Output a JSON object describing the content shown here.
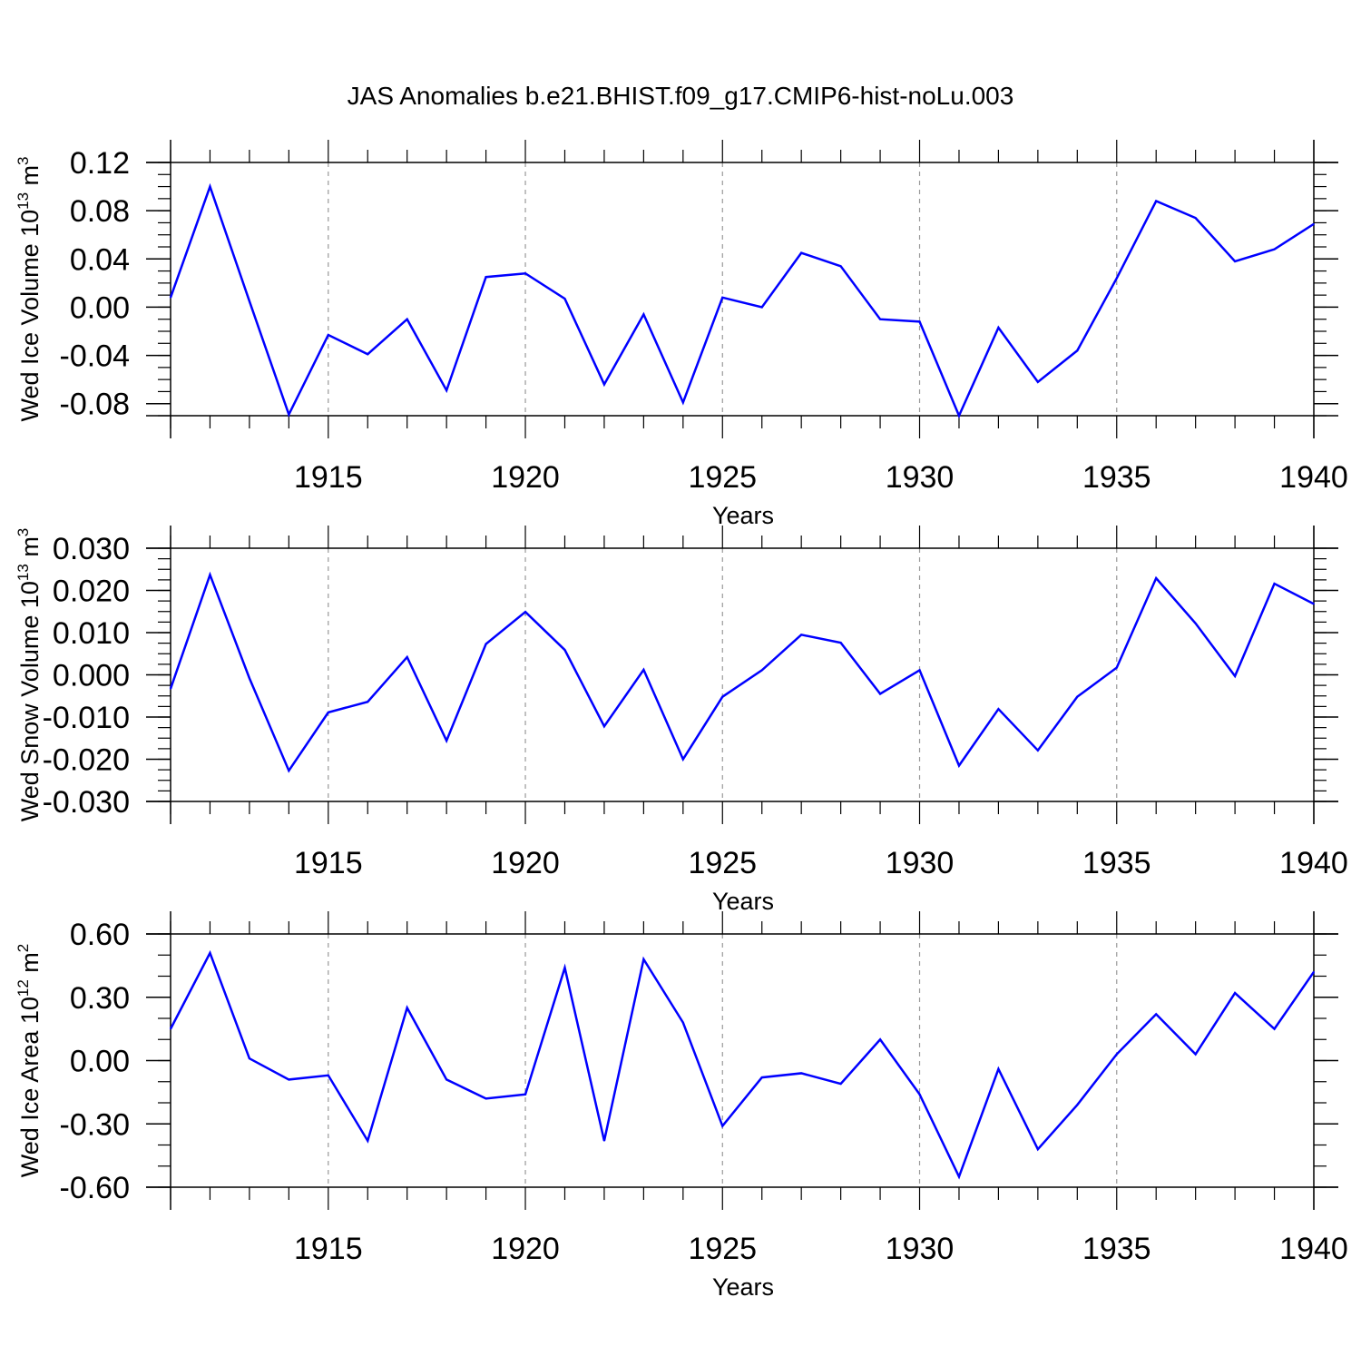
{
  "figure_title": "JAS Anomalies b.e21.BHIST.f09_g17.CMIP6-hist-noLu.003",
  "colors": {
    "line": "#0000ff",
    "axis": "#000000",
    "grid": "#999999"
  },
  "chart_data": [
    {
      "type": "line",
      "name": "ice-volume",
      "ylabel_main": "Wed Ice Volume 10",
      "ylabel_exp": "13",
      "ylabel_unit": " m",
      "ylabel_unit_exp": "3",
      "xlabel": "Years",
      "xlim": [
        1911,
        1940
      ],
      "ylim": [
        -0.09,
        0.12
      ],
      "yticks": [
        -0.08,
        -0.04,
        0.0,
        0.04,
        0.08,
        0.12
      ],
      "ytick_labels": [
        "-0.08",
        "-0.04",
        "0.00",
        "0.04",
        "0.08",
        "0.12"
      ],
      "yminor_step": 0.01,
      "xticks": [
        1915,
        1920,
        1925,
        1930,
        1935,
        1940
      ],
      "xtick_labels": [
        "1915",
        "1920",
        "1925",
        "1930",
        "1935",
        "1940"
      ],
      "x": [
        1911,
        1912,
        1913,
        1914,
        1915,
        1916,
        1917,
        1918,
        1919,
        1920,
        1921,
        1922,
        1923,
        1924,
        1925,
        1926,
        1927,
        1928,
        1929,
        1930,
        1931,
        1932,
        1933,
        1934,
        1935,
        1936,
        1937,
        1938,
        1939,
        1940
      ],
      "y": [
        0.008,
        0.1,
        0.005,
        -0.089,
        -0.023,
        -0.039,
        -0.01,
        -0.069,
        0.025,
        0.028,
        0.007,
        -0.064,
        -0.006,
        -0.079,
        0.008,
        0.0,
        0.045,
        0.034,
        -0.01,
        -0.012,
        -0.09,
        -0.017,
        -0.062,
        -0.036,
        0.024,
        0.088,
        0.074,
        0.038,
        0.048,
        0.069
      ]
    },
    {
      "type": "line",
      "name": "snow-volume",
      "ylabel_main": "Wed Snow Volume 10",
      "ylabel_exp": "13",
      "ylabel_unit": " m",
      "ylabel_unit_exp": "3",
      "xlabel": "Years",
      "xlim": [
        1911,
        1940
      ],
      "ylim": [
        -0.03,
        0.03
      ],
      "yticks": [
        -0.03,
        -0.02,
        -0.01,
        0.0,
        0.01,
        0.02,
        0.03
      ],
      "ytick_labels": [
        "-0.030",
        "-0.020",
        "-0.010",
        "0.000",
        "0.010",
        "0.020",
        "0.030"
      ],
      "yminor_step": 0.0025,
      "xticks": [
        1915,
        1920,
        1925,
        1930,
        1935,
        1940
      ],
      "xtick_labels": [
        "1915",
        "1920",
        "1925",
        "1930",
        "1935",
        "1940"
      ],
      "x": [
        1911,
        1912,
        1913,
        1914,
        1915,
        1916,
        1917,
        1918,
        1919,
        1920,
        1921,
        1922,
        1923,
        1924,
        1925,
        1926,
        1927,
        1928,
        1929,
        1930,
        1931,
        1932,
        1933,
        1934,
        1935,
        1936,
        1937,
        1938,
        1939,
        1940
      ],
      "y": [
        -0.0033,
        0.0237,
        -0.0008,
        -0.0227,
        -0.0089,
        -0.0064,
        0.0042,
        -0.0156,
        0.0073,
        0.0149,
        0.0059,
        -0.0122,
        0.0012,
        -0.02,
        -0.0052,
        0.0011,
        0.0095,
        0.0076,
        -0.0045,
        0.0011,
        -0.0215,
        -0.0081,
        -0.0179,
        -0.0052,
        0.0017,
        0.0229,
        0.0122,
        -0.0003,
        0.0216,
        0.0168
      ]
    },
    {
      "type": "line",
      "name": "ice-area",
      "ylabel_main": "Wed Ice Area 10",
      "ylabel_exp": "12",
      "ylabel_unit": " m",
      "ylabel_unit_exp": "2",
      "xlabel": "Years",
      "xlim": [
        1911,
        1940
      ],
      "ylim": [
        -0.6,
        0.6
      ],
      "yticks": [
        -0.6,
        -0.3,
        0.0,
        0.3,
        0.6
      ],
      "ytick_labels": [
        "-0.60",
        "-0.30",
        "0.00",
        "0.30",
        "0.60"
      ],
      "yminor_step": 0.1,
      "xticks": [
        1915,
        1920,
        1925,
        1930,
        1935,
        1940
      ],
      "xtick_labels": [
        "1915",
        "1920",
        "1925",
        "1930",
        "1935",
        "1940"
      ],
      "x": [
        1911,
        1912,
        1913,
        1914,
        1915,
        1916,
        1917,
        1918,
        1919,
        1920,
        1921,
        1922,
        1923,
        1924,
        1925,
        1926,
        1927,
        1928,
        1929,
        1930,
        1931,
        1932,
        1933,
        1934,
        1935,
        1936,
        1937,
        1938,
        1939,
        1940
      ],
      "y": [
        0.15,
        0.51,
        0.01,
        -0.09,
        -0.07,
        -0.38,
        0.25,
        -0.09,
        -0.18,
        -0.16,
        0.44,
        -0.38,
        0.48,
        0.18,
        -0.31,
        -0.08,
        -0.06,
        -0.11,
        0.1,
        -0.16,
        -0.55,
        -0.04,
        -0.42,
        -0.21,
        0.03,
        0.22,
        0.03,
        0.32,
        0.15,
        0.42
      ]
    }
  ]
}
